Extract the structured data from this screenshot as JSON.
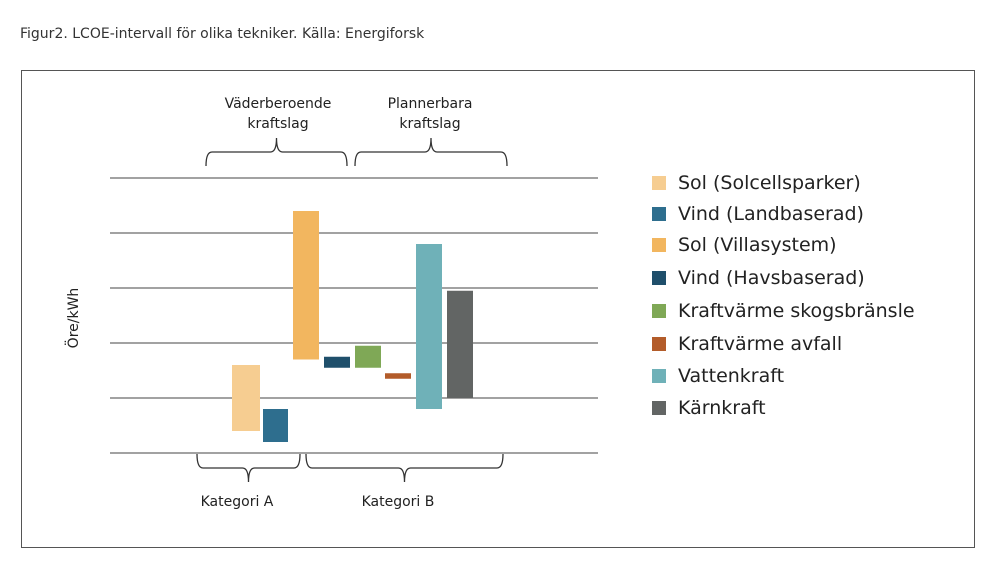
{
  "caption": "Figur2. LCOE-intervall för olika tekniker. Källa: Energiforsk",
  "chart_data": {
    "type": "bar",
    "subtype": "floating-range",
    "ylabel": "Öre/kWh",
    "y_ticks_labeled": false,
    "grid": true,
    "group_labels_top": [
      {
        "label_lines": [
          "Väderberoende",
          "kraftslag"
        ]
      },
      {
        "label_lines": [
          "Plannerbara",
          "kraftslag"
        ]
      }
    ],
    "group_labels_bottom": [
      {
        "label": "Kategori A"
      },
      {
        "label": "Kategori B"
      }
    ],
    "series": [
      {
        "name": "Sol  (Solcellsparker)",
        "color": "#f6cd91",
        "low": 0.4,
        "high": 1.6
      },
      {
        "name": "Vind (Landbaserad)",
        "color": "#2e6e8e",
        "low": 0.2,
        "high": 0.8
      },
      {
        "name": "Sol (Villasystem)",
        "color": "#f2b65f",
        "low": 1.7,
        "high": 4.4
      },
      {
        "name": "Vind (Havsbaserad)",
        "color": "#1f4f6b",
        "low": 1.55,
        "high": 1.75
      },
      {
        "name": "Kraftvärme skogsbränsle",
        "color": "#7fa856",
        "low": 1.55,
        "high": 1.95
      },
      {
        "name": "Kraftvärme avfall",
        "color": "#b35c2a",
        "low": 1.35,
        "high": 1.45
      },
      {
        "name": "Vattenkraft",
        "color": "#6fb1b8",
        "low": 0.8,
        "high": 3.8
      },
      {
        "name": "Kärnkraft",
        "color": "#626564",
        "low": 1.0,
        "high": 2.95
      }
    ],
    "ylim": [
      0,
      5
    ]
  }
}
